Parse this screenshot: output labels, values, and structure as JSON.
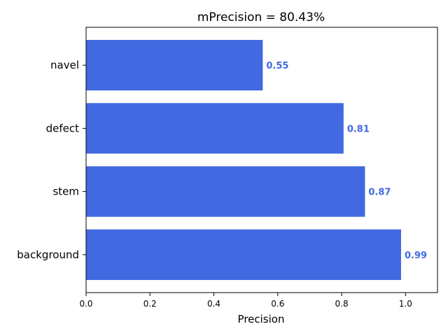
{
  "chart_data": {
    "type": "bar",
    "orientation": "horizontal",
    "title": "mPrecision = 80.43%",
    "xlabel": "Precision",
    "ylabel": "",
    "categories": [
      "background",
      "stem",
      "defect",
      "navel"
    ],
    "values": [
      0.986,
      0.873,
      0.806,
      0.553
    ],
    "data_labels": [
      "0.99",
      "0.87",
      "0.81",
      "0.55"
    ],
    "xlim": [
      0,
      1.1
    ],
    "xticks": [
      0.0,
      0.2,
      0.4,
      0.6,
      0.8,
      1.0
    ],
    "xtick_labels": [
      "0.0",
      "0.2",
      "0.4",
      "0.6",
      "0.8",
      "1.0"
    ],
    "bar_color": "#4169e1",
    "label_color": "#4169e1",
    "grid": false,
    "legend": "none"
  }
}
